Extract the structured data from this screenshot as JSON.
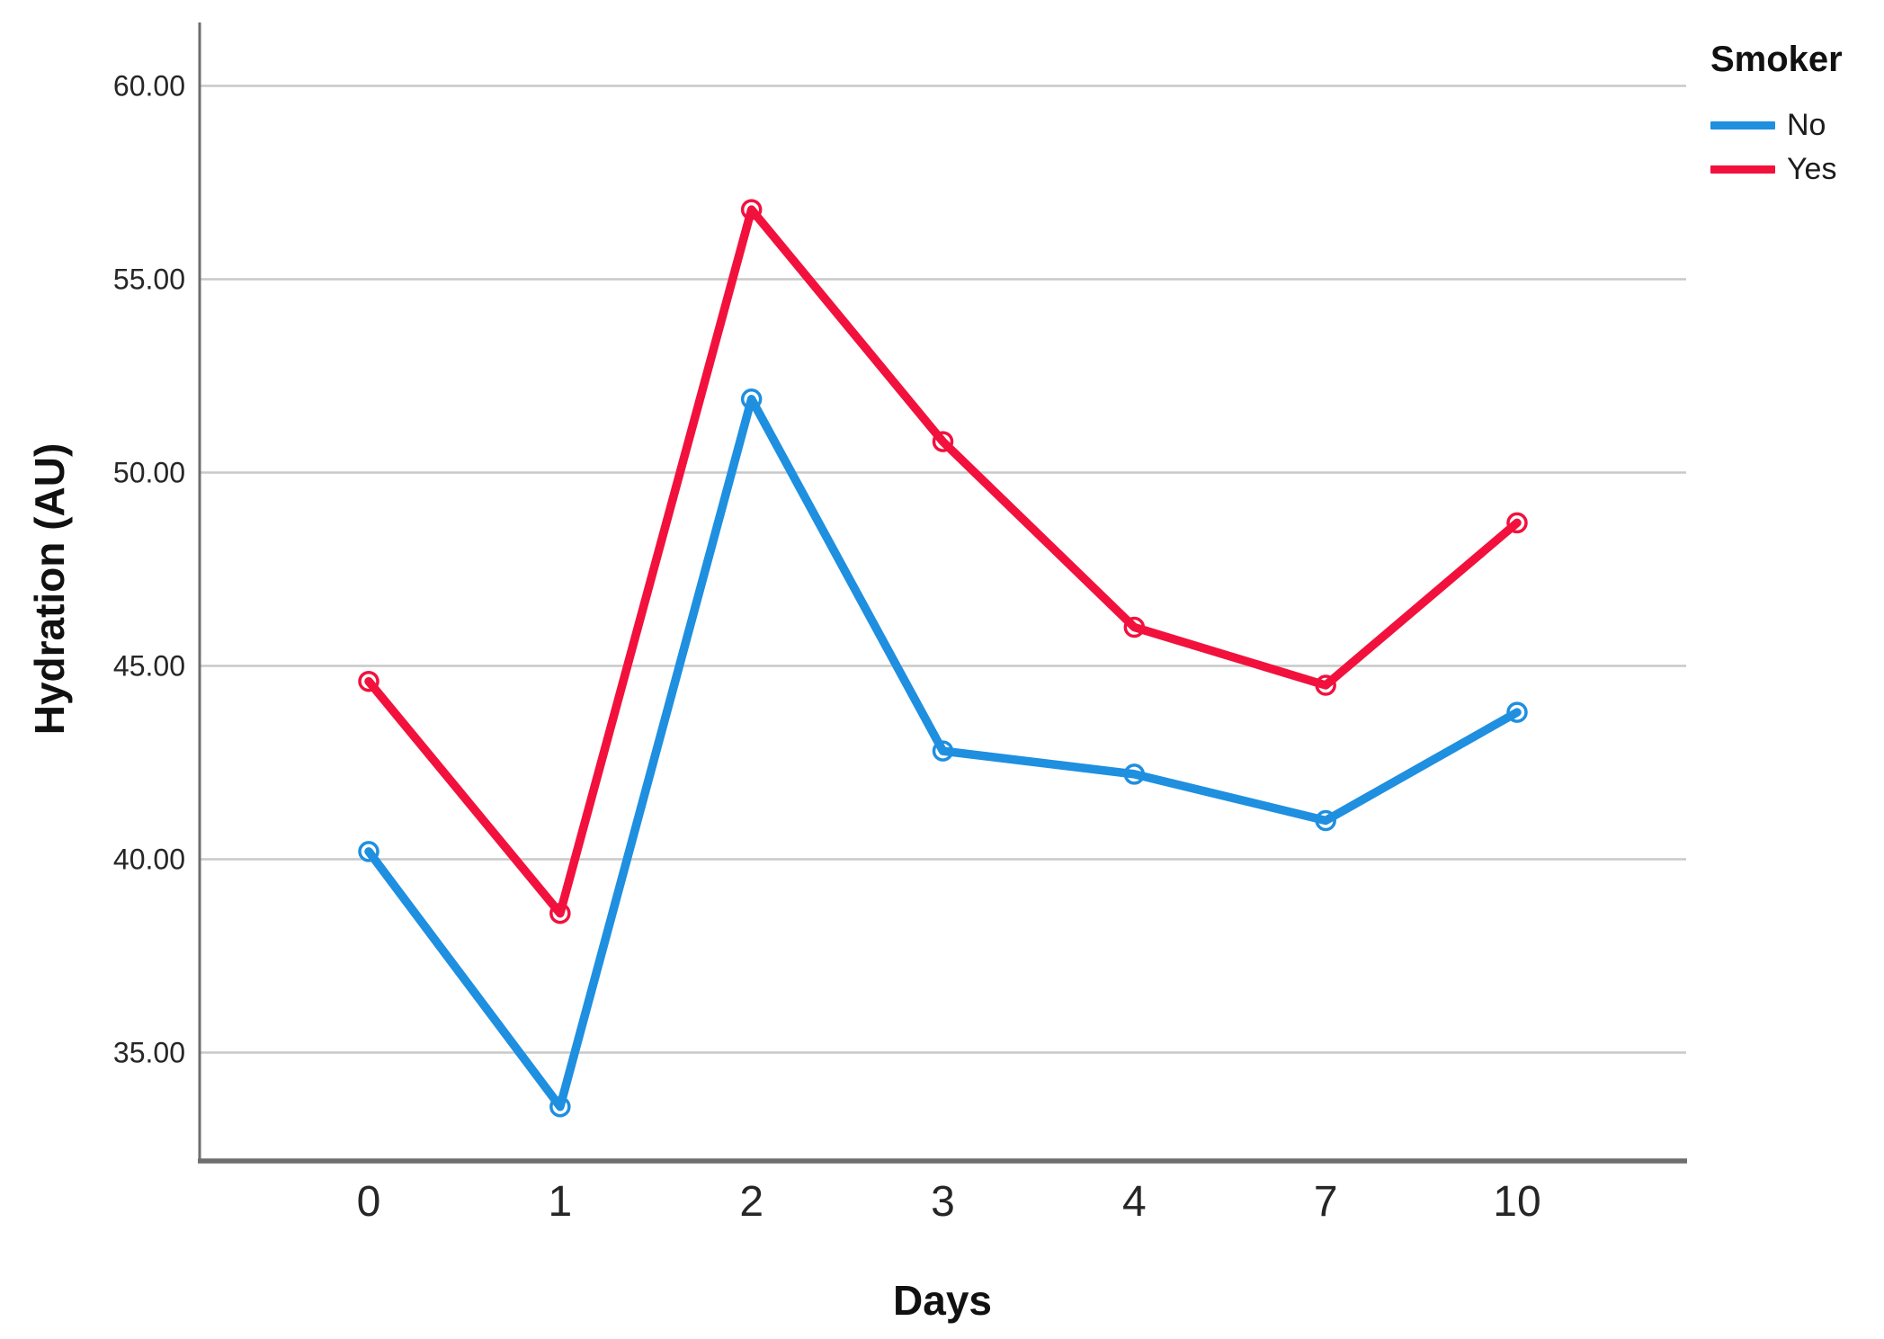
{
  "chart_data": {
    "type": "line",
    "title": "",
    "xlabel": "Days",
    "ylabel": "Hydration (AU)",
    "categories": [
      "0",
      "1",
      "2",
      "3",
      "4",
      "7",
      "10"
    ],
    "series": [
      {
        "name": "No",
        "color": "#1F8FE0",
        "values": [
          40.2,
          33.6,
          51.9,
          42.8,
          42.2,
          41.0,
          43.8
        ]
      },
      {
        "name": "Yes",
        "color": "#F2113D",
        "values": [
          44.6,
          38.6,
          56.8,
          50.8,
          46.0,
          44.5,
          48.7
        ]
      }
    ],
    "y_tick_labels": [
      "35.00",
      "40.00",
      "45.00",
      "50.00",
      "55.00",
      "60.00"
    ],
    "y_tick_values": [
      35,
      40,
      45,
      50,
      55,
      60
    ],
    "ylim": [
      32.2,
      61.6
    ],
    "grid": "horizontal-only",
    "legend": {
      "title": "Smoker",
      "position": "top-right"
    },
    "colors": {
      "gridline": "#C9C9C9",
      "axis_line": "#6E6E6E",
      "tick_text": "#262626",
      "marker_fill": "#FFFFFF"
    }
  }
}
